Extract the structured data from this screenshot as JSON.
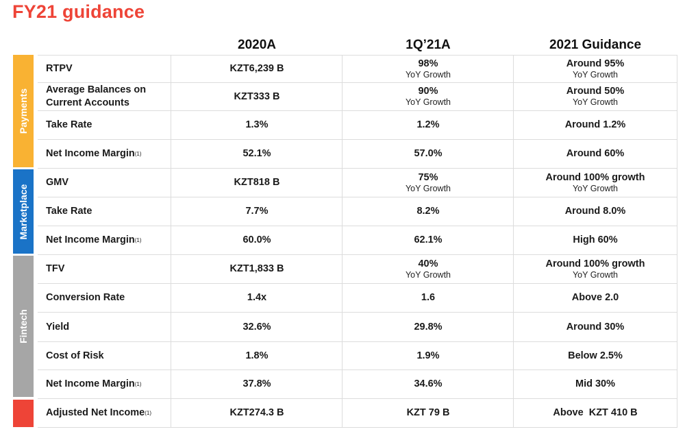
{
  "title": "FY21 guidance",
  "columns": [
    "2020A",
    "1Q’21A",
    "2021 Guidance"
  ],
  "footnote_marker": "(1)",
  "colors": {
    "title": "#ee4437",
    "payments": "#f9b233",
    "marketplace": "#1a73c7",
    "fintech": "#a6a6a6",
    "adjusted": "#ee4437"
  },
  "sections": {
    "payments": "Payments",
    "marketplace": "Marketplace",
    "fintech": "Fintech"
  },
  "rows": [
    {
      "label": "RTPV",
      "v2020": "KZT6,239 B",
      "v1q": "98%",
      "s1q": "YoY Growth",
      "g": "Around 95%",
      "gs": "YoY Growth"
    },
    {
      "label": "Average Balances on Current Accounts",
      "v2020": "KZT333 B",
      "v1q": "90%",
      "s1q": "YoY Growth",
      "g": "Around 50%",
      "gs": "YoY Growth"
    },
    {
      "label": "Take Rate",
      "v2020": "1.3%",
      "v1q": "1.2%",
      "s1q": "",
      "g": "Around 1.2%",
      "gs": ""
    },
    {
      "label": "Net Income Margin",
      "v2020": "52.1%",
      "v1q": "57.0%",
      "s1q": "",
      "g": "Around 60%",
      "gs": ""
    },
    {
      "label": "GMV",
      "v2020": "KZT818 B",
      "v1q": "75%",
      "s1q": "YoY Growth",
      "g": "Around 100% growth",
      "gs": "YoY Growth"
    },
    {
      "label": "Take Rate",
      "v2020": "7.7%",
      "v1q": "8.2%",
      "s1q": "",
      "g": "Around 8.0%",
      "gs": ""
    },
    {
      "label": "Net Income Margin",
      "v2020": "60.0%",
      "v1q": "62.1%",
      "s1q": "",
      "g": "High 60%",
      "gs": ""
    },
    {
      "label": "TFV",
      "v2020": "KZT1,833 B",
      "v1q": "40%",
      "s1q": "YoY Growth",
      "g": "Around 100% growth",
      "gs": "YoY Growth"
    },
    {
      "label": "Conversion Rate",
      "v2020": "1.4x",
      "v1q": "1.6",
      "s1q": "",
      "g": "Above 2.0",
      "gs": ""
    },
    {
      "label": "Yield",
      "v2020": "32.6%",
      "v1q": "29.8%",
      "s1q": "",
      "g": "Around 30%",
      "gs": ""
    },
    {
      "label": "Cost of Risk",
      "v2020": "1.8%",
      "v1q": "1.9%",
      "s1q": "",
      "g": "Below 2.5%",
      "gs": ""
    },
    {
      "label": "Net Income Margin",
      "v2020": "37.8%",
      "v1q": "34.6%",
      "s1q": "",
      "g": "Mid 30%",
      "gs": ""
    },
    {
      "label": "Adjusted Net Income",
      "v2020": "KZT274.3 B",
      "v1q": "KZT 79 B",
      "s1q": "",
      "g": "Above  KZT 410 B",
      "gs": ""
    }
  ]
}
